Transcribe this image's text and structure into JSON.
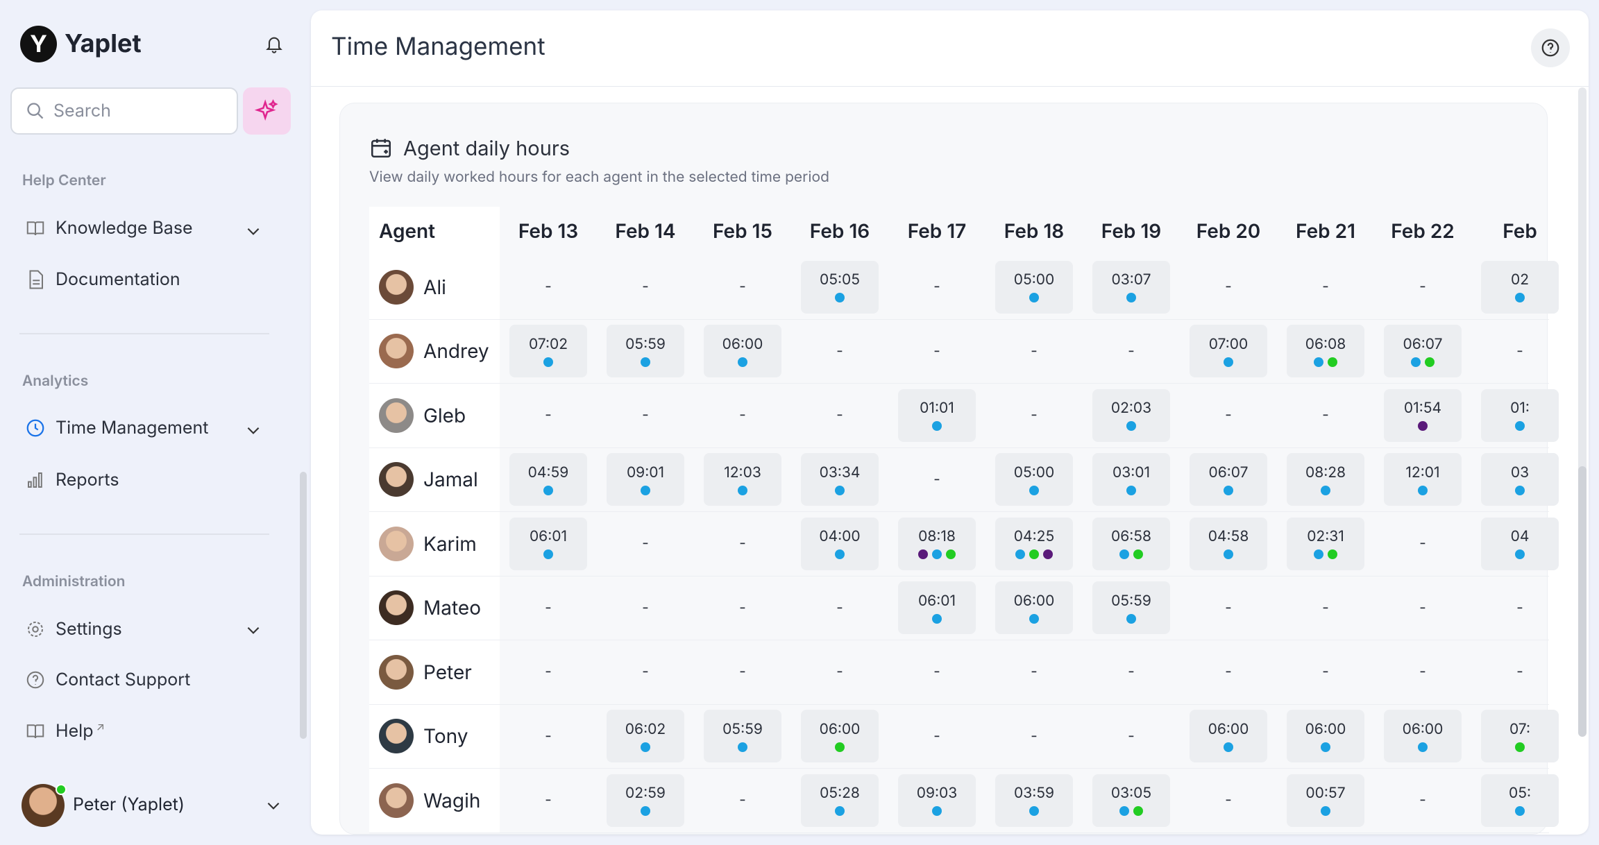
{
  "sidebar": {
    "brand": "Yaplet",
    "search_placeholder": "Search",
    "sections": [
      {
        "title": "Help Center",
        "items": [
          "Knowledge Base",
          "Documentation"
        ]
      },
      {
        "title": "Analytics",
        "items": [
          "Time Management",
          "Reports"
        ]
      },
      {
        "title": "Administration",
        "items": [
          "Settings",
          "Contact Support",
          "Help"
        ]
      }
    ],
    "user": "Peter (Yaplet)"
  },
  "header": {
    "title": "Time Management"
  },
  "card": {
    "title": "Agent daily hours",
    "subtitle": "View daily worked hours for each agent in the selected time period",
    "table": {
      "agent_header": "Agent",
      "dates": [
        "Feb 13",
        "Feb 14",
        "Feb 15",
        "Feb 16",
        "Feb 17",
        "Feb 18",
        "Feb 19",
        "Feb 20",
        "Feb 21",
        "Feb 22",
        "Feb"
      ],
      "rows": [
        {
          "agent": "Ali",
          "cells": [
            {
              "time": "-",
              "dots": []
            },
            {
              "time": "-",
              "dots": []
            },
            {
              "time": "-",
              "dots": []
            },
            {
              "time": "05:05",
              "dots": [
                "#1ba1e2"
              ]
            },
            {
              "time": "-",
              "dots": []
            },
            {
              "time": "05:00",
              "dots": [
                "#1ba1e2"
              ]
            },
            {
              "time": "03:07",
              "dots": [
                "#1ba1e2"
              ]
            },
            {
              "time": "-",
              "dots": []
            },
            {
              "time": "-",
              "dots": []
            },
            {
              "time": "-",
              "dots": []
            },
            {
              "time": "02",
              "dots": [
                "#1ba1e2"
              ]
            }
          ]
        },
        {
          "agent": "Andrey",
          "cells": [
            {
              "time": "07:02",
              "dots": [
                "#1ba1e2"
              ]
            },
            {
              "time": "05:59",
              "dots": [
                "#1ba1e2"
              ]
            },
            {
              "time": "06:00",
              "dots": [
                "#1ba1e2"
              ]
            },
            {
              "time": "-",
              "dots": []
            },
            {
              "time": "-",
              "dots": []
            },
            {
              "time": "-",
              "dots": []
            },
            {
              "time": "-",
              "dots": []
            },
            {
              "time": "07:00",
              "dots": [
                "#1ba1e2"
              ]
            },
            {
              "time": "06:08",
              "dots": [
                "#1ba1e2",
                "#22cc22"
              ]
            },
            {
              "time": "06:07",
              "dots": [
                "#1ba1e2",
                "#22cc22"
              ]
            },
            {
              "time": "-",
              "dots": []
            }
          ]
        },
        {
          "agent": "Gleb",
          "cells": [
            {
              "time": "-",
              "dots": []
            },
            {
              "time": "-",
              "dots": []
            },
            {
              "time": "-",
              "dots": []
            },
            {
              "time": "-",
              "dots": []
            },
            {
              "time": "01:01",
              "dots": [
                "#1ba1e2"
              ]
            },
            {
              "time": "-",
              "dots": []
            },
            {
              "time": "02:03",
              "dots": [
                "#1ba1e2"
              ]
            },
            {
              "time": "-",
              "dots": []
            },
            {
              "time": "-",
              "dots": []
            },
            {
              "time": "01:54",
              "dots": [
                "#5a1a7a"
              ]
            },
            {
              "time": "01:",
              "dots": [
                "#1ba1e2"
              ]
            }
          ]
        },
        {
          "agent": "Jamal",
          "cells": [
            {
              "time": "04:59",
              "dots": [
                "#1ba1e2"
              ]
            },
            {
              "time": "09:01",
              "dots": [
                "#1ba1e2"
              ]
            },
            {
              "time": "12:03",
              "dots": [
                "#1ba1e2"
              ]
            },
            {
              "time": "03:34",
              "dots": [
                "#1ba1e2"
              ]
            },
            {
              "time": "-",
              "dots": []
            },
            {
              "time": "05:00",
              "dots": [
                "#1ba1e2"
              ]
            },
            {
              "time": "03:01",
              "dots": [
                "#1ba1e2"
              ]
            },
            {
              "time": "06:07",
              "dots": [
                "#1ba1e2"
              ]
            },
            {
              "time": "08:28",
              "dots": [
                "#1ba1e2"
              ]
            },
            {
              "time": "12:01",
              "dots": [
                "#1ba1e2"
              ]
            },
            {
              "time": "03",
              "dots": [
                "#1ba1e2"
              ]
            }
          ]
        },
        {
          "agent": "Karim",
          "cells": [
            {
              "time": "06:01",
              "dots": [
                "#1ba1e2"
              ]
            },
            {
              "time": "-",
              "dots": []
            },
            {
              "time": "-",
              "dots": []
            },
            {
              "time": "04:00",
              "dots": [
                "#1ba1e2"
              ]
            },
            {
              "time": "08:18",
              "dots": [
                "#5a1a7a",
                "#1ba1e2",
                "#22cc22"
              ]
            },
            {
              "time": "04:25",
              "dots": [
                "#1ba1e2",
                "#22cc22",
                "#5a1a7a"
              ]
            },
            {
              "time": "06:58",
              "dots": [
                "#1ba1e2",
                "#22cc22"
              ]
            },
            {
              "time": "04:58",
              "dots": [
                "#1ba1e2"
              ]
            },
            {
              "time": "02:31",
              "dots": [
                "#1ba1e2",
                "#22cc22"
              ]
            },
            {
              "time": "-",
              "dots": []
            },
            {
              "time": "04",
              "dots": [
                "#1ba1e2"
              ]
            }
          ]
        },
        {
          "agent": "Mateo",
          "cells": [
            {
              "time": "-",
              "dots": []
            },
            {
              "time": "-",
              "dots": []
            },
            {
              "time": "-",
              "dots": []
            },
            {
              "time": "-",
              "dots": []
            },
            {
              "time": "06:01",
              "dots": [
                "#1ba1e2"
              ]
            },
            {
              "time": "06:00",
              "dots": [
                "#1ba1e2"
              ]
            },
            {
              "time": "05:59",
              "dots": [
                "#1ba1e2"
              ]
            },
            {
              "time": "-",
              "dots": []
            },
            {
              "time": "-",
              "dots": []
            },
            {
              "time": "-",
              "dots": []
            },
            {
              "time": "-",
              "dots": []
            }
          ]
        },
        {
          "agent": "Peter",
          "cells": [
            {
              "time": "-",
              "dots": []
            },
            {
              "time": "-",
              "dots": []
            },
            {
              "time": "-",
              "dots": []
            },
            {
              "time": "-",
              "dots": []
            },
            {
              "time": "-",
              "dots": []
            },
            {
              "time": "-",
              "dots": []
            },
            {
              "time": "-",
              "dots": []
            },
            {
              "time": "-",
              "dots": []
            },
            {
              "time": "-",
              "dots": []
            },
            {
              "time": "-",
              "dots": []
            },
            {
              "time": "-",
              "dots": []
            }
          ]
        },
        {
          "agent": "Tony",
          "cells": [
            {
              "time": "-",
              "dots": []
            },
            {
              "time": "06:02",
              "dots": [
                "#1ba1e2"
              ]
            },
            {
              "time": "05:59",
              "dots": [
                "#1ba1e2"
              ]
            },
            {
              "time": "06:00",
              "dots": [
                "#22cc22"
              ]
            },
            {
              "time": "-",
              "dots": []
            },
            {
              "time": "-",
              "dots": []
            },
            {
              "time": "-",
              "dots": []
            },
            {
              "time": "06:00",
              "dots": [
                "#1ba1e2"
              ]
            },
            {
              "time": "06:00",
              "dots": [
                "#1ba1e2"
              ]
            },
            {
              "time": "06:00",
              "dots": [
                "#1ba1e2"
              ]
            },
            {
              "time": "07:",
              "dots": [
                "#22cc22"
              ]
            }
          ]
        },
        {
          "agent": "Wagih",
          "cells": [
            {
              "time": "-",
              "dots": []
            },
            {
              "time": "02:59",
              "dots": [
                "#1ba1e2"
              ]
            },
            {
              "time": "-",
              "dots": []
            },
            {
              "time": "05:28",
              "dots": [
                "#1ba1e2"
              ]
            },
            {
              "time": "09:03",
              "dots": [
                "#1ba1e2"
              ]
            },
            {
              "time": "03:59",
              "dots": [
                "#1ba1e2"
              ]
            },
            {
              "time": "03:05",
              "dots": [
                "#1ba1e2",
                "#22cc22"
              ]
            },
            {
              "time": "-",
              "dots": []
            },
            {
              "time": "00:57",
              "dots": [
                "#1ba1e2"
              ]
            },
            {
              "time": "-",
              "dots": []
            },
            {
              "time": "05:",
              "dots": [
                "#1ba1e2"
              ]
            }
          ]
        }
      ]
    }
  }
}
